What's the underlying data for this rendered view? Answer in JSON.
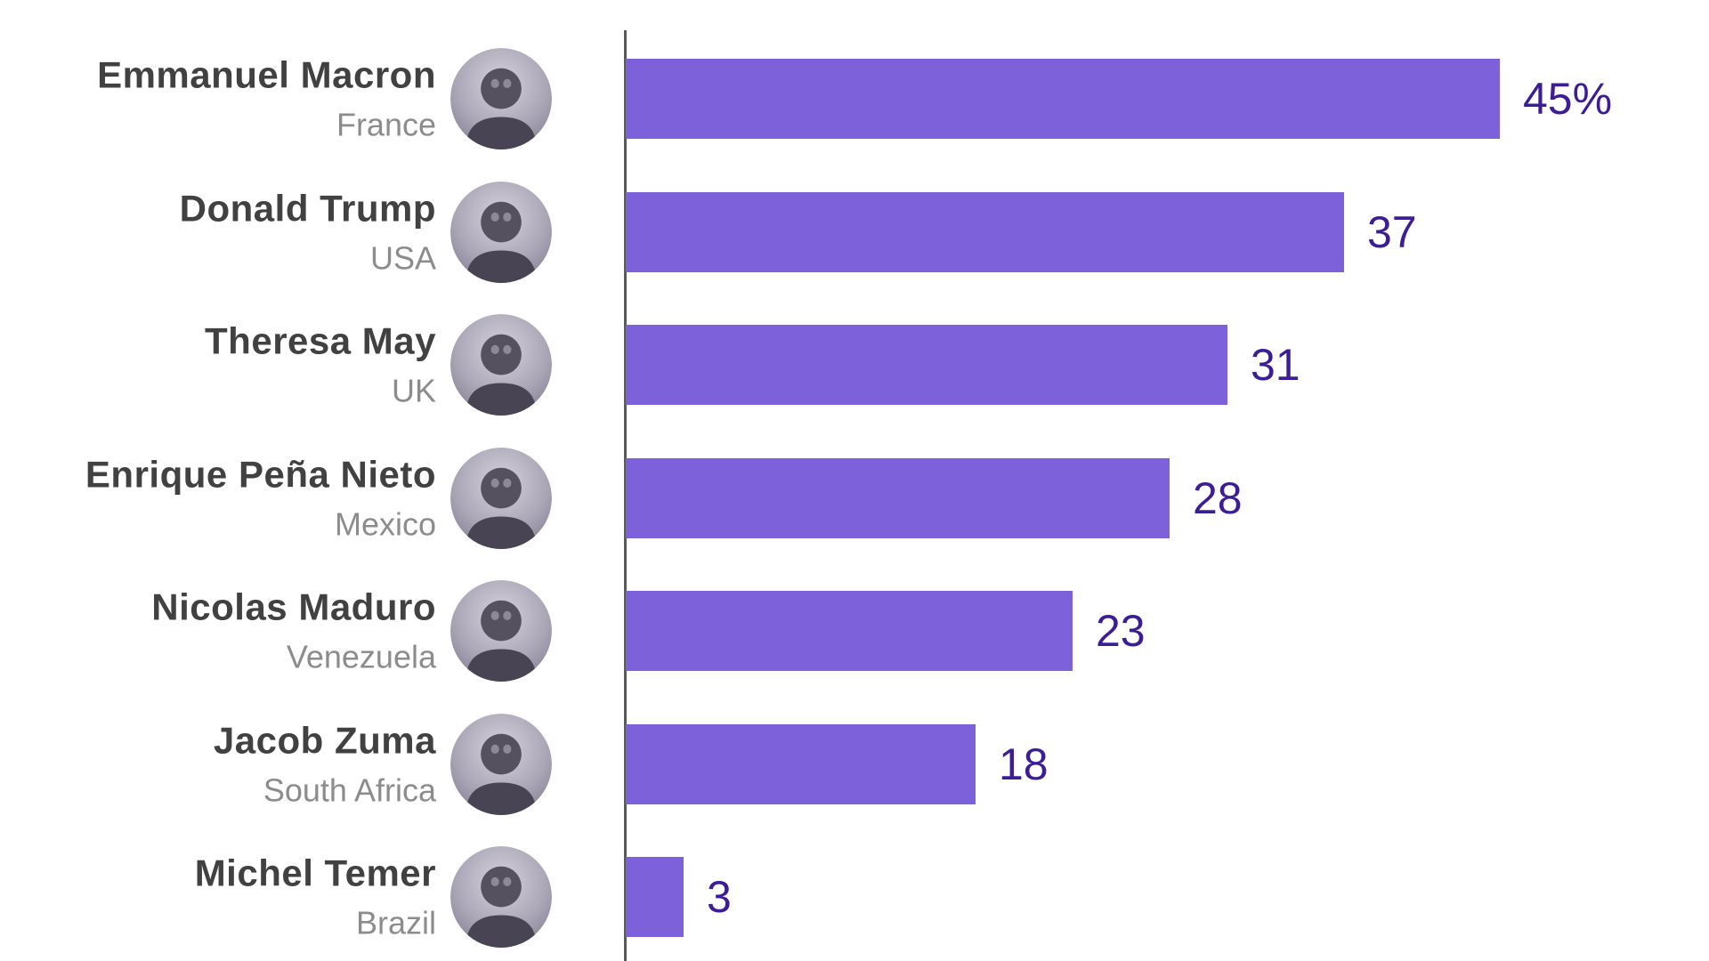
{
  "chart_data": {
    "type": "bar",
    "orientation": "horizontal",
    "title": "",
    "xlabel": "",
    "ylabel": "",
    "unit": "%",
    "xlim": [
      0,
      45
    ],
    "grid": false,
    "legend": false,
    "categories": [
      "Emmanuel Macron",
      "Donald Trump",
      "Theresa May",
      "Enrique Peña Nieto",
      "Nicolas Maduro",
      "Jacob Zuma",
      "Michel Temer"
    ],
    "values": [
      45,
      37,
      31,
      28,
      23,
      18,
      3
    ],
    "rows": [
      {
        "name": "Emmanuel Macron",
        "country": "France",
        "value": 45,
        "label": "45%"
      },
      {
        "name": "Donald Trump",
        "country": "USA",
        "value": 37,
        "label": "37"
      },
      {
        "name": "Theresa May",
        "country": "UK",
        "value": 31,
        "label": "31"
      },
      {
        "name": "Enrique Peña Nieto",
        "country": "Mexico",
        "value": 28,
        "label": "28"
      },
      {
        "name": "Nicolas Maduro",
        "country": "Venezuela",
        "value": 23,
        "label": "23"
      },
      {
        "name": "Jacob Zuma",
        "country": "South Africa",
        "value": 18,
        "label": "18"
      },
      {
        "name": "Michel Temer",
        "country": "Brazil",
        "value": 3,
        "label": "3"
      }
    ]
  },
  "colors": {
    "bar": "#7c61da",
    "value_label": "#3d1d96",
    "axis_line": "#5a5a5a",
    "name_text": "#414141",
    "country_text": "#8c8c8c"
  }
}
